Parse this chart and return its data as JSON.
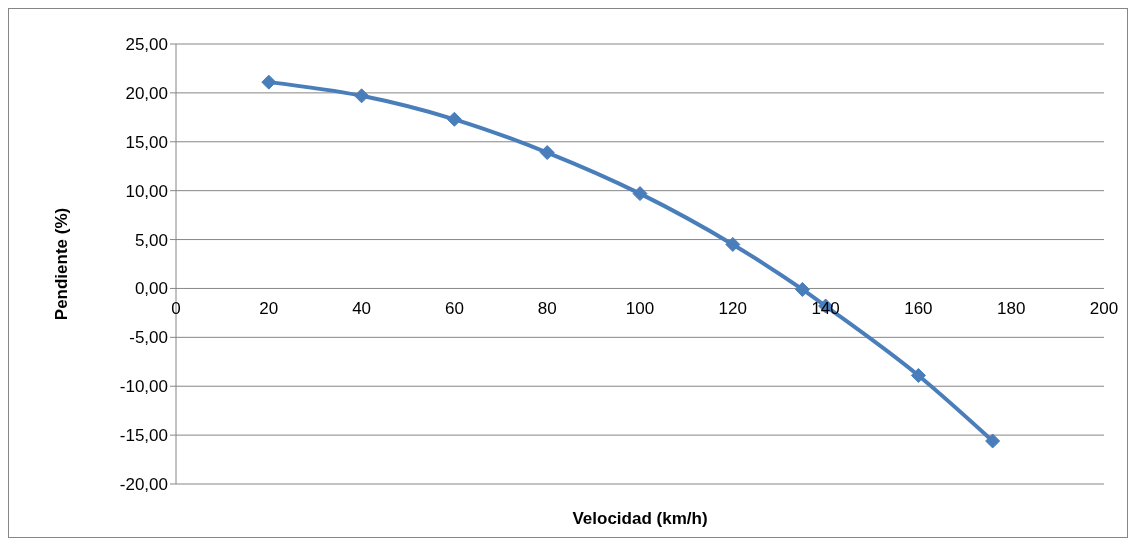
{
  "chart_data": {
    "type": "line",
    "xlabel": "Velocidad (km/h)",
    "ylabel": "Pendiente (%)",
    "x": [
      20,
      40,
      60,
      80,
      100,
      120,
      135,
      140,
      160,
      176
    ],
    "series": [
      {
        "color": "#4a7ebb",
        "values": [
          21.1,
          19.7,
          17.3,
          13.9,
          9.7,
          4.5,
          -0.1,
          -1.8,
          -8.9,
          -15.6
        ]
      }
    ],
    "xlim": [
      0,
      200
    ],
    "xticks": [
      0,
      20,
      40,
      60,
      80,
      100,
      120,
      140,
      160,
      180,
      200
    ],
    "ylim": [
      -20,
      25
    ],
    "yticks": [
      {
        "value": -20,
        "label": "-20,00"
      },
      {
        "value": -15,
        "label": "-15,00"
      },
      {
        "value": -10,
        "label": "-10,00"
      },
      {
        "value": -5,
        "label": "-5,00"
      },
      {
        "value": 0,
        "label": "0,00"
      },
      {
        "value": 5,
        "label": "5,00"
      },
      {
        "value": 10,
        "label": "10,00"
      },
      {
        "value": 15,
        "label": "15,00"
      },
      {
        "value": 20,
        "label": "20,00"
      },
      {
        "value": 25,
        "label": "25,00"
      }
    ],
    "grid": "y",
    "legend": false,
    "marker": "diamond",
    "line_style": "solid"
  }
}
